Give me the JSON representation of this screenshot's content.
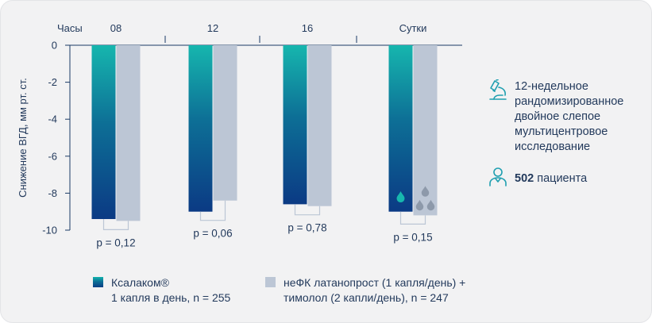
{
  "colors": {
    "xalacom_top": "#16b6ae",
    "xalacom_bottom": "#0b3a84",
    "comparator": "#bcc6d5",
    "axis": "#1b3a66",
    "text": "#233a5c"
  },
  "chart_data": {
    "type": "bar",
    "x_axis_title": "Часы",
    "categories": [
      "08",
      "12",
      "16",
      "Сутки"
    ],
    "ylabel": "Снижение ВГД, мм рт. ст.",
    "ylim": [
      -10,
      0
    ],
    "yticks": [
      0,
      -2,
      -4,
      -6,
      -8,
      -10
    ],
    "series": [
      {
        "name": "Ксалаком®",
        "values": [
          -9.4,
          -9.0,
          -8.6,
          -9.0
        ]
      },
      {
        "name": "неФК латанопрост (1 капля/день) + тимолол (2 капли/день)",
        "values": [
          -9.5,
          -8.4,
          -8.7,
          -9.2
        ]
      }
    ],
    "p_values": [
      "p = 0,12",
      "p = 0,06",
      "p = 0,78",
      "p = 0,15"
    ],
    "drop_icons": [
      "drop-single-icon",
      "drops-triple-icon"
    ]
  },
  "study": {
    "description_lines": [
      "12-недельное",
      "рандомизированное",
      "двойное слепое",
      "мультицентровое",
      "исследование"
    ],
    "patients_count": "502",
    "patients_label": "пациента"
  },
  "legend": {
    "item1_lines": [
      "Ксалаком®",
      "1 капля в день, n = 255"
    ],
    "item2_lines": [
      "неФК латанопрост (1 капля/день) +",
      "тимолол (2 капли/день), n = 247"
    ]
  }
}
